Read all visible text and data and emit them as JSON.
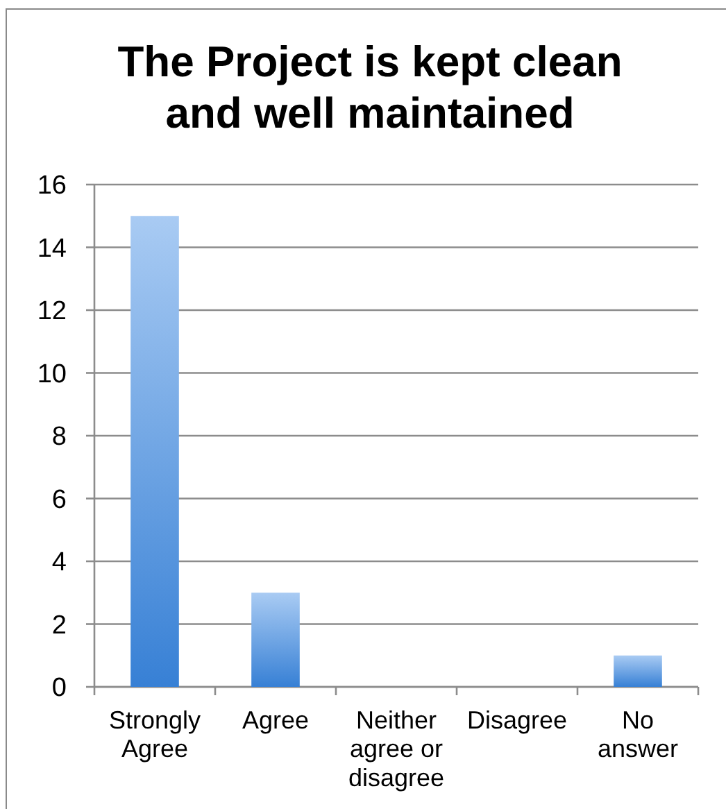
{
  "chart_data": {
    "type": "bar",
    "title": "The Project is kept clean and well maintained",
    "categories": [
      "Strongly Agree",
      "Agree",
      "Neither agree or disagree",
      "Disagree",
      "No answer"
    ],
    "values": [
      15,
      3,
      0,
      0,
      1
    ],
    "color": "#6aa5ea",
    "ylim": [
      0,
      16
    ],
    "yticks": [
      0,
      2,
      4,
      6,
      8,
      10,
      12,
      14,
      16
    ],
    "grid": "y"
  }
}
